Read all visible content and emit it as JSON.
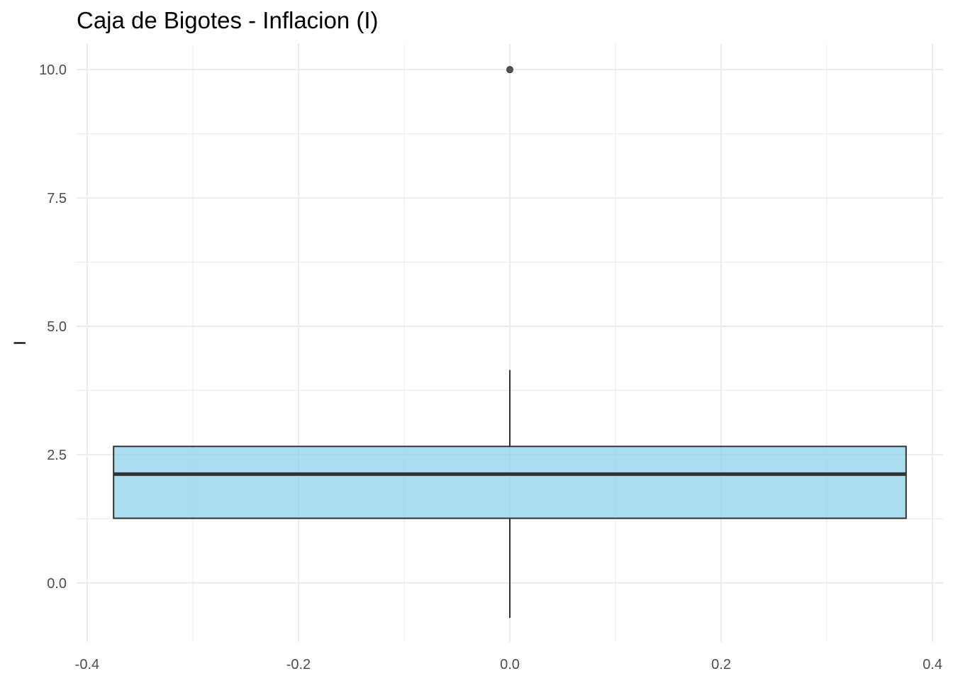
{
  "chart_data": {
    "type": "boxplot",
    "title": "Caja de Bigotes - Inflacion (I)",
    "xlabel": "",
    "ylabel": "I",
    "xlim": [
      -0.41,
      0.41
    ],
    "ylim": [
      -1.15,
      10.5
    ],
    "x_ticks": [
      {
        "value": -0.4,
        "label": "-0.4"
      },
      {
        "value": -0.2,
        "label": "-0.2"
      },
      {
        "value": 0.0,
        "label": "0.0"
      },
      {
        "value": 0.2,
        "label": "0.2"
      },
      {
        "value": 0.4,
        "label": "0.4"
      }
    ],
    "x_minor": [
      -0.3,
      -0.1,
      0.1,
      0.3
    ],
    "y_ticks": [
      {
        "value": 0.0,
        "label": "0.0"
      },
      {
        "value": 2.5,
        "label": "2.5"
      },
      {
        "value": 5.0,
        "label": "5.0"
      },
      {
        "value": 7.5,
        "label": "7.5"
      },
      {
        "value": 10.0,
        "label": "10.0"
      }
    ],
    "y_minor": [
      1.25,
      3.75,
      6.25,
      8.75
    ],
    "grid": true,
    "box": {
      "x": 0.0,
      "x_min": -0.375,
      "x_max": 0.375,
      "whisker_low": -0.68,
      "q1": 1.26,
      "median": 2.12,
      "q3": 2.66,
      "whisker_high": 4.15,
      "outliers": [
        10.0
      ]
    },
    "colors": {
      "box_fill": "#87CEEB",
      "box_stroke": "#333333",
      "grid": "#ebebeb",
      "outlier": "#555555"
    }
  }
}
